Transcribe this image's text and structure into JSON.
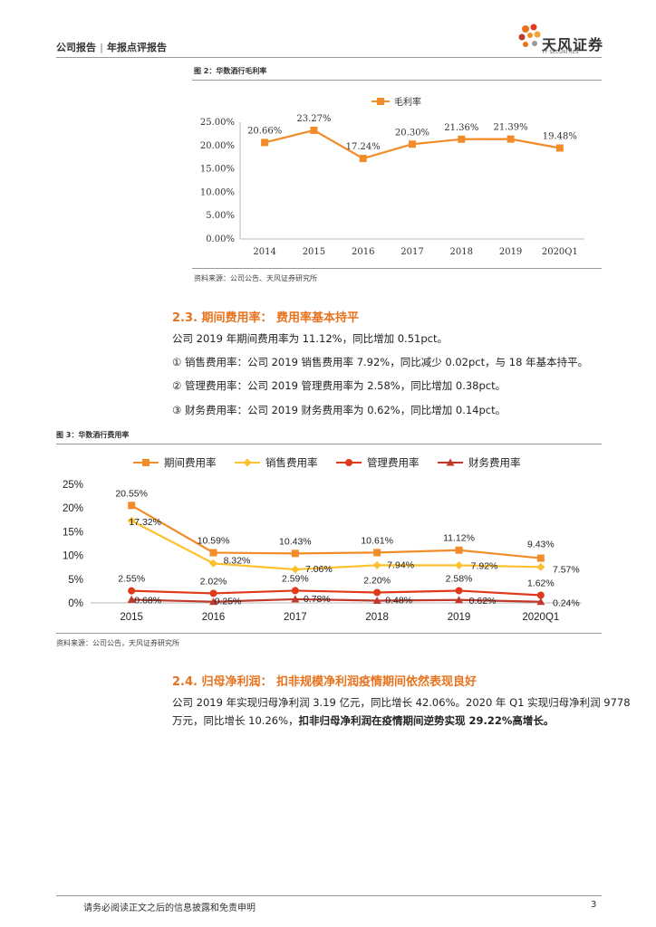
{
  "header": {
    "report_type": "公司报告",
    "report_subtype": "年报点评报告",
    "logo_text": "天风证券",
    "logo_sub": "TF SECURITIES"
  },
  "colors": {
    "accent": "#e8731e",
    "series1": "#f28c28",
    "series2": "#fcc12e",
    "series3": "#e0391b",
    "series4": "#c0392b"
  },
  "figure2": {
    "title": "图 2：华数酒行毛利率",
    "source": "资料来源：公司公告、天风证券研究所"
  },
  "section_2_3": {
    "title": "2.3. 期间费用率： 费用率基本持平",
    "p1": "公司 2019 年期间费用率为 11.12%，同比增加 0.51pct。",
    "p2": "① 销售费用率：公司 2019 销售费用率 7.92%，同比减少 0.02pct，与 18 年基本持平。",
    "p3": "② 管理费用率：公司 2019 管理费用率为 2.58%，同比增加 0.38pct。",
    "p4": "③ 财务费用率：公司 2019 财务费用率为 0.62%，同比增加 0.14pct。"
  },
  "figure3": {
    "title": "图 3：华数酒行费用率",
    "source": "资料来源：公司公告，天风证券研究所"
  },
  "section_2_4": {
    "title": "2.4. 归母净利润： 扣非规模净利润疫情期间依然表现良好",
    "p1_line1": "公司 2019 年实现归母净利润 3.19 亿元，同比增长 42.06%。2020 年 Q1 实现归母净利润 9778",
    "p1_line2_normal": "万元，同比增长 10.26%，",
    "p1_line2_bold": "扣非归母净利润在疫情期间逆势实现 29.22%高增长。"
  },
  "footer": {
    "disclaimer": "请务必阅读正文之后的信息披露和免责申明",
    "page": "3"
  },
  "chart_data": [
    {
      "type": "line",
      "categories": [
        "2014",
        "2015",
        "2016",
        "2017",
        "2018",
        "2019",
        "2020Q1"
      ],
      "series": [
        {
          "name": "毛利率",
          "values": [
            20.66,
            23.27,
            17.24,
            20.3,
            21.36,
            21.39,
            19.48
          ],
          "labels": [
            "20.66%",
            "23.27%",
            "17.24%",
            "20.30%",
            "21.36%",
            "21.39%",
            "19.48%"
          ]
        }
      ],
      "ylim": [
        0,
        25
      ],
      "yticks": [
        "0.00%",
        "5.00%",
        "10.00%",
        "15.00%",
        "20.00%",
        "25.00%"
      ],
      "legend": "top-center",
      "grid": false
    },
    {
      "type": "line",
      "categories": [
        "2015",
        "2016",
        "2017",
        "2018",
        "2019",
        "2020Q1"
      ],
      "series": [
        {
          "name": "期间费用率",
          "values": [
            20.55,
            10.59,
            10.43,
            10.61,
            11.12,
            9.43
          ],
          "labels": [
            "20.55%",
            "10.59%",
            "10.43%",
            "10.61%",
            "11.12%",
            "9.43%"
          ]
        },
        {
          "name": "销售费用率",
          "values": [
            17.32,
            8.32,
            7.06,
            7.94,
            7.92,
            7.57
          ],
          "labels": [
            "17.32%",
            "8.32%",
            "7.06%",
            "7.94%",
            "7.92%",
            "7.57%"
          ]
        },
        {
          "name": "管理费用率",
          "values": [
            2.55,
            2.02,
            2.59,
            2.2,
            2.58,
            1.62
          ],
          "labels": [
            "2.55%",
            "2.02%",
            "2.59%",
            "2.20%",
            "2.58%",
            "1.62%"
          ]
        },
        {
          "name": "财务费用率",
          "values": [
            0.68,
            0.25,
            0.78,
            0.48,
            0.62,
            0.24
          ],
          "labels": [
            "0.68%",
            "0.25%",
            "0.78%",
            "0.48%",
            "0.62%",
            "0.24%"
          ]
        }
      ],
      "ylim": [
        0,
        25
      ],
      "yticks": [
        "0%",
        "5%",
        "10%",
        "15%",
        "20%",
        "25%"
      ],
      "legend": "top-center",
      "grid": false
    }
  ]
}
